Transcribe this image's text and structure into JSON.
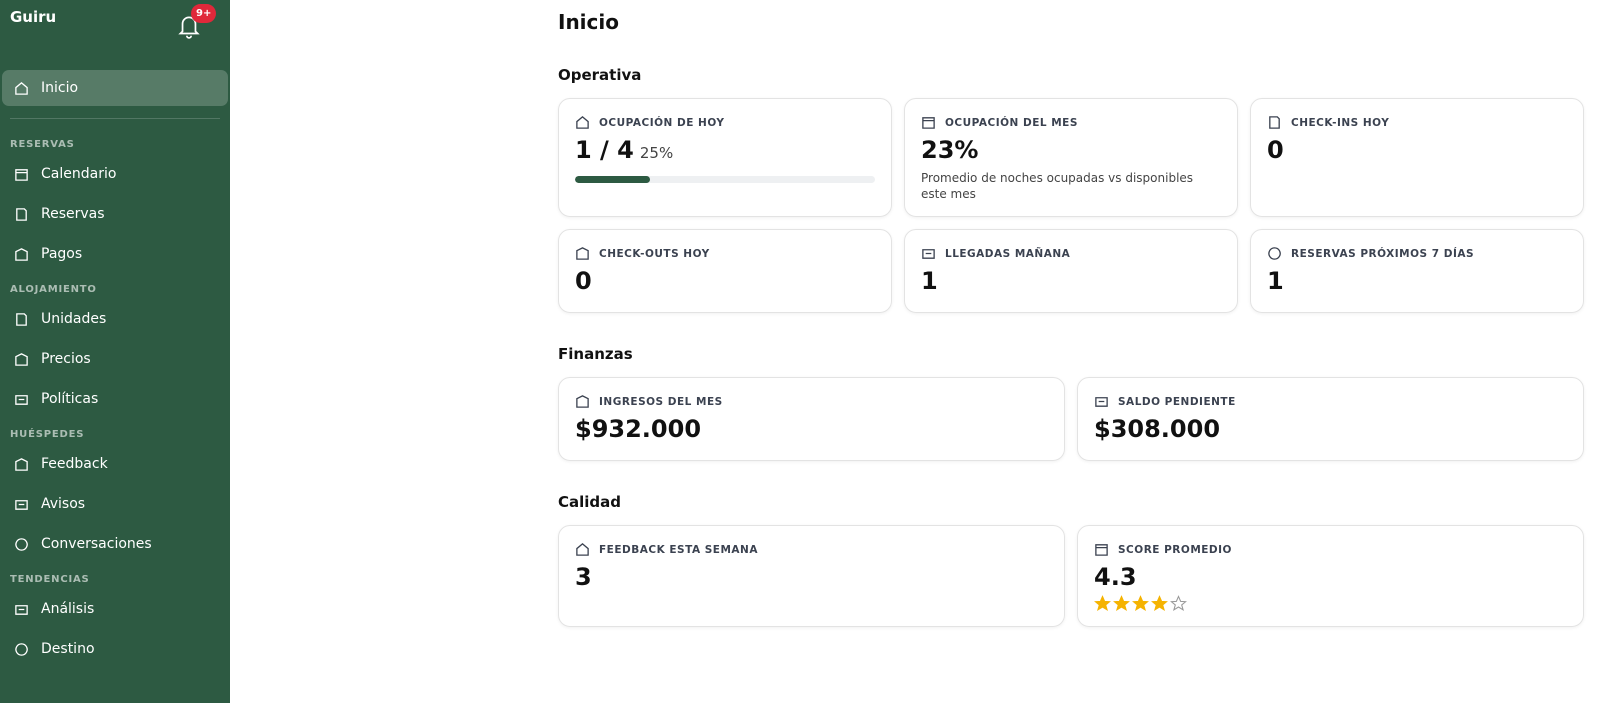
{
  "sidebar": {
    "brand": "Guiru",
    "notification_badge": "9+",
    "home": "Inicio",
    "sections": [
      {
        "title": "RESERVAS",
        "items": [
          "Calendario",
          "Reservas",
          "Pagos"
        ]
      },
      {
        "title": "ALOJAMIENTO",
        "items": [
          "Unidades",
          "Precios",
          "Políticas"
        ]
      },
      {
        "title": "HUÉSPEDES",
        "items": [
          "Feedback",
          "Avisos",
          "Conversaciones"
        ]
      },
      {
        "title": "TENDENCIAS",
        "items": [
          "Análisis",
          "Destino"
        ]
      }
    ]
  },
  "main": {
    "title": "Inicio",
    "sections": [
      {
        "title": "Operativa",
        "cards": [
          {
            "label": "OCUPACIÓN DE HOY",
            "value": "1 / 4",
            "percent": {
              "value": 25,
              "label": "25%"
            }
          },
          {
            "label": "OCUPACIÓN DEL MES",
            "value": "23%",
            "note": "Promedio de noches ocupadas vs disponibles este mes"
          },
          {
            "label": "CHECK-INS HOY",
            "value": 0
          },
          {
            "label": "CHECK-OUTS HOY",
            "value": 0
          },
          {
            "label": "LLEGADAS MAÑANA",
            "value": 1
          },
          {
            "label": "RESERVAS PRÓXIMOS 7 DÍAS",
            "value": 1
          }
        ]
      },
      {
        "title": "Finanzas",
        "cards": [
          {
            "label": "INGRESOS DEL MES",
            "value": "$932.000"
          },
          {
            "label": "SALDO PENDIENTE",
            "value": "$308.000"
          }
        ]
      },
      {
        "title": "Calidad",
        "cards": [
          {
            "label": "FEEDBACK ESTA SEMANA",
            "value": 3
          },
          {
            "label": "SCORE PROMEDIO",
            "value": 4.3
          }
        ]
      }
    ]
  }
}
